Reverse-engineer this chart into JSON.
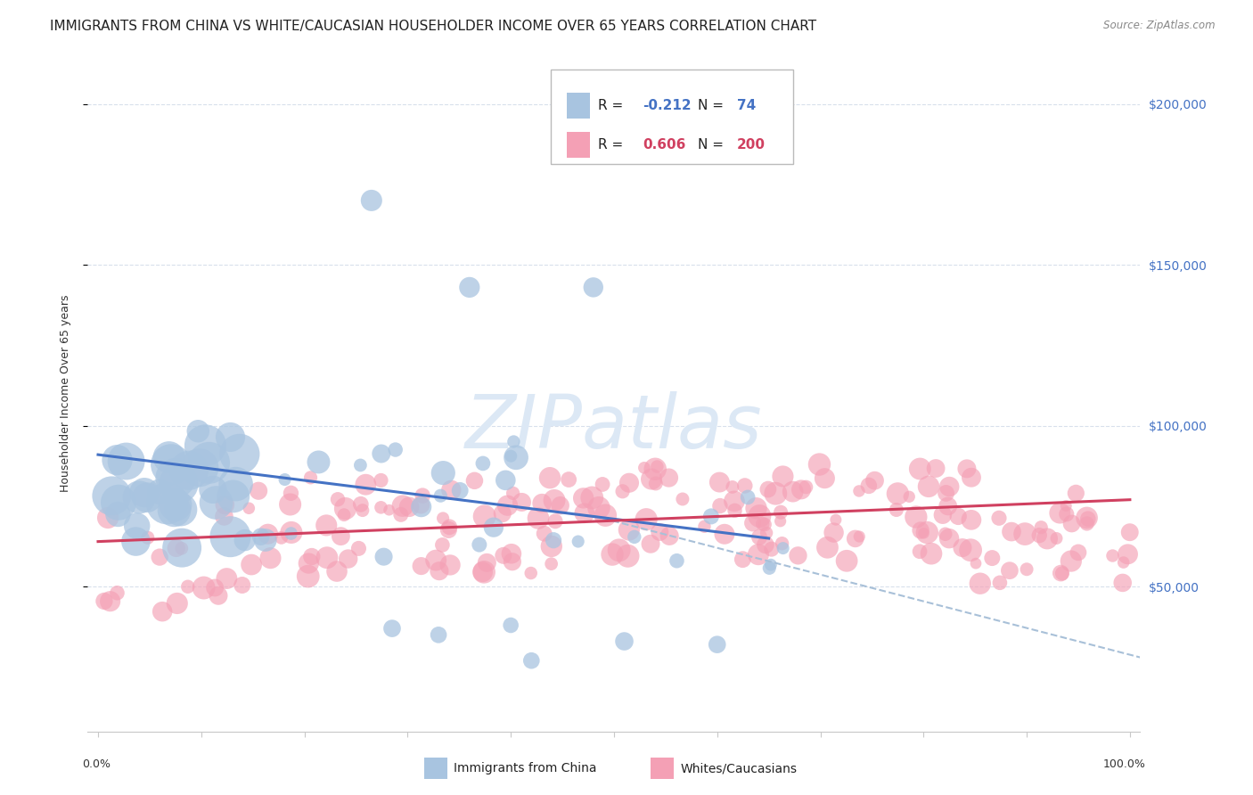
{
  "title": "IMMIGRANTS FROM CHINA VS WHITE/CAUCASIAN HOUSEHOLDER INCOME OVER 65 YEARS CORRELATION CHART",
  "source": "Source: ZipAtlas.com",
  "ylabel": "Householder Income Over 65 years",
  "watermark": "ZIPatlas",
  "color_china": "#a8c4e0",
  "color_white": "#f4a0b5",
  "color_china_line": "#4472c4",
  "color_white_line": "#d04060",
  "color_dashed": "#a8c0d8",
  "ytick_labels": [
    "$50,000",
    "$100,000",
    "$150,000",
    "$200,000"
  ],
  "ytick_values": [
    50000,
    100000,
    150000,
    200000
  ],
  "ylim": [
    5000,
    215000
  ],
  "xlim": [
    -0.01,
    1.01
  ],
  "bg_color": "#ffffff",
  "grid_color": "#d8e0ec",
  "title_fontsize": 11,
  "axis_label_fontsize": 9,
  "tick_fontsize": 9,
  "legend_fontsize": 11,
  "watermark_fontsize": 60,
  "watermark_color": "#dce8f5",
  "china_line_x": [
    0.0,
    0.65
  ],
  "china_line_y": [
    91000,
    65000
  ],
  "white_line_x": [
    0.0,
    1.0
  ],
  "white_line_y": [
    64000,
    77000
  ],
  "dashed_line_x": [
    0.48,
    1.01
  ],
  "dashed_line_y": [
    72000,
    28000
  ]
}
